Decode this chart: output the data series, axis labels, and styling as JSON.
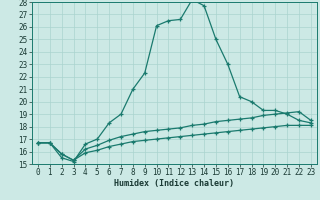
{
  "xlabel": "Humidex (Indice chaleur)",
  "bg_color": "#cce9e5",
  "grid_color": "#aad4cf",
  "line_color": "#1a7a6e",
  "spine_color": "#1a7a6e",
  "xlim": [
    -0.5,
    23.5
  ],
  "ylim": [
    15,
    28
  ],
  "xticks": [
    0,
    1,
    2,
    3,
    4,
    5,
    6,
    7,
    8,
    9,
    10,
    11,
    12,
    13,
    14,
    15,
    16,
    17,
    18,
    19,
    20,
    21,
    22,
    23
  ],
  "yticks": [
    15,
    16,
    17,
    18,
    19,
    20,
    21,
    22,
    23,
    24,
    25,
    26,
    27,
    28
  ],
  "series1_x": [
    0,
    1,
    2,
    3,
    4,
    5,
    6,
    7,
    8,
    9,
    10,
    11,
    12,
    13,
    14,
    15,
    16,
    17,
    18,
    19,
    20,
    21,
    22,
    23
  ],
  "series1_y": [
    16.7,
    16.7,
    15.5,
    15.2,
    16.6,
    17.0,
    18.3,
    19.0,
    21.0,
    22.3,
    26.1,
    26.5,
    26.6,
    28.2,
    27.7,
    25.0,
    23.0,
    20.4,
    20.0,
    19.3,
    19.3,
    19.0,
    18.5,
    18.3
  ],
  "series2_x": [
    0,
    1,
    2,
    3,
    4,
    5,
    6,
    7,
    8,
    9,
    10,
    11,
    12,
    13,
    14,
    15,
    16,
    17,
    18,
    19,
    20,
    21,
    22,
    23
  ],
  "series2_y": [
    16.7,
    16.7,
    15.8,
    15.3,
    16.2,
    16.5,
    16.9,
    17.2,
    17.4,
    17.6,
    17.7,
    17.8,
    17.9,
    18.1,
    18.2,
    18.4,
    18.5,
    18.6,
    18.7,
    18.9,
    19.0,
    19.1,
    19.2,
    18.5
  ],
  "series3_x": [
    0,
    1,
    2,
    3,
    4,
    5,
    6,
    7,
    8,
    9,
    10,
    11,
    12,
    13,
    14,
    15,
    16,
    17,
    18,
    19,
    20,
    21,
    22,
    23
  ],
  "series3_y": [
    16.7,
    16.7,
    15.8,
    15.3,
    15.9,
    16.1,
    16.4,
    16.6,
    16.8,
    16.9,
    17.0,
    17.1,
    17.2,
    17.3,
    17.4,
    17.5,
    17.6,
    17.7,
    17.8,
    17.9,
    18.0,
    18.1,
    18.1,
    18.1
  ],
  "tick_fontsize": 5.5,
  "xlabel_fontsize": 6.0,
  "tick_color": "#1a3a34",
  "marker_size": 3.5,
  "lw": 0.9
}
